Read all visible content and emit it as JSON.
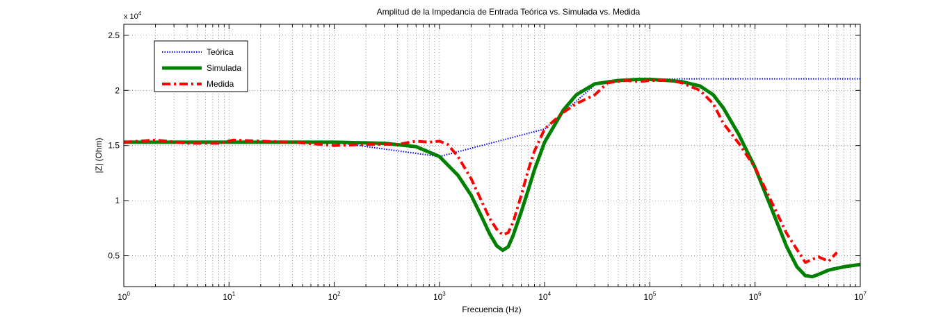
{
  "chart_data": {
    "type": "line",
    "title": "Amplitud de la Impedancia de Entrada Teórica vs. Simulada vs. Medida",
    "xlabel": "Frecuencia (Hz)",
    "ylabel": "|Z| (Ohm)",
    "x_scale": "log",
    "xlim": [
      1,
      10000000
    ],
    "ylim": [
      2200,
      26000
    ],
    "y_multiplier_label": "x 10",
    "y_multiplier_exponent": "4",
    "x_ticks": [
      {
        "value": 1,
        "base": "10",
        "exp": "0"
      },
      {
        "value": 10,
        "base": "10",
        "exp": "1"
      },
      {
        "value": 100,
        "base": "10",
        "exp": "2"
      },
      {
        "value": 1000,
        "base": "10",
        "exp": "3"
      },
      {
        "value": 10000,
        "base": "10",
        "exp": "4"
      },
      {
        "value": 100000,
        "base": "10",
        "exp": "5"
      },
      {
        "value": 1000000,
        "base": "10",
        "exp": "6"
      },
      {
        "value": 10000000,
        "base": "10",
        "exp": "7"
      }
    ],
    "y_ticks": [
      {
        "value": 5000,
        "label": "0.5"
      },
      {
        "value": 10000,
        "label": "1"
      },
      {
        "value": 15000,
        "label": "1.5"
      },
      {
        "value": 20000,
        "label": "2"
      },
      {
        "value": 25000,
        "label": "2.5"
      }
    ],
    "grid": true,
    "legend_position": "top-left",
    "series": [
      {
        "name": "Teórica",
        "color": "#0000ff",
        "style": "dotted",
        "x": [
          1,
          10,
          100,
          1000,
          10000,
          30000,
          60000,
          100000,
          200000,
          500000,
          1000000,
          5000000,
          10000000
        ],
        "y": [
          15300,
          15300,
          15300,
          14000,
          16500,
          20500,
          20900,
          21000,
          21050,
          21050,
          21050,
          21050,
          21050
        ]
      },
      {
        "name": "Simulada",
        "color": "#008000",
        "style": "solid",
        "x": [
          1,
          10,
          100,
          300,
          600,
          1000,
          1500,
          2000,
          2500,
          3000,
          3500,
          4000,
          4500,
          5000,
          6000,
          7000,
          8000,
          10000,
          15000,
          20000,
          30000,
          50000,
          80000,
          100000,
          150000,
          200000,
          300000,
          400000,
          500000,
          700000,
          1000000,
          1500000,
          2000000,
          2500000,
          3000000,
          3500000,
          4000000,
          5000000,
          7000000,
          10000000
        ],
        "y": [
          15300,
          15300,
          15300,
          15200,
          14900,
          14000,
          12300,
          10500,
          8600,
          7000,
          5900,
          5500,
          5800,
          6800,
          9000,
          11000,
          12800,
          15300,
          18200,
          19600,
          20600,
          20900,
          21000,
          21000,
          20900,
          20800,
          20400,
          19600,
          18400,
          16000,
          13000,
          8800,
          5800,
          4000,
          3200,
          3100,
          3300,
          3700,
          4000,
          4200
        ]
      },
      {
        "name": "Medida",
        "color": "#ff0000",
        "style": "dashdot",
        "x": [
          1,
          2,
          4,
          8,
          11,
          20,
          40,
          100,
          200,
          400,
          600,
          800,
          1000,
          1200,
          1500,
          2000,
          2500,
          3000,
          3500,
          4000,
          4500,
          5000,
          6000,
          7000,
          8000,
          10000,
          15000,
          20000,
          30000,
          35000,
          40000,
          60000,
          80000,
          100000,
          150000,
          200000,
          300000,
          400000,
          500000,
          700000,
          1000000,
          1500000,
          2000000,
          3000000,
          4000000,
          5000000,
          6000000
        ],
        "y": [
          15300,
          15500,
          15200,
          15200,
          15500,
          15400,
          15300,
          15000,
          15100,
          15100,
          15400,
          15300,
          15400,
          15100,
          14000,
          12000,
          10000,
          8400,
          7400,
          6900,
          7100,
          8000,
          10500,
          12800,
          14500,
          16500,
          18000,
          18800,
          19600,
          20200,
          20700,
          20900,
          20800,
          20900,
          20900,
          20700,
          20000,
          18800,
          17000,
          15200,
          13000,
          9500,
          7000,
          4400,
          4900,
          4500,
          5300
        ]
      }
    ]
  }
}
